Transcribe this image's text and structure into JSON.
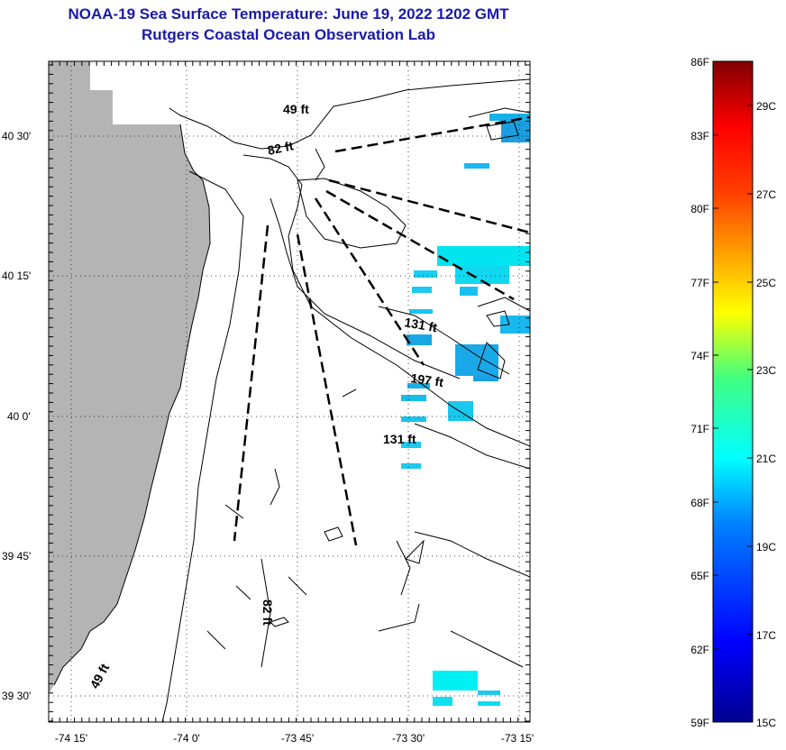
{
  "header": {
    "title_line1": "NOAA-19 Sea Surface Temperature:  June 19, 2022 1202 GMT",
    "title_line2": "Rutgers Coastal Ocean Observation Lab"
  },
  "map": {
    "lon_ticks": [
      "-74 15'",
      "-74 0'",
      "-73 45'",
      "-73 30'",
      "-73 15'"
    ],
    "lat_ticks": [
      "40 30'",
      "40 15'",
      "40 0'",
      "39 45'",
      "39 30'"
    ],
    "contour_labels": [
      "49 ft",
      "82 ft",
      "131 ft",
      "197 ft",
      "131 ft",
      "82 ft",
      "49 ft"
    ],
    "land_color": "#b4b4b4",
    "water_color": "#ffffff"
  },
  "colorbar": {
    "fahrenheit_labels": [
      "86F",
      "83F",
      "80F",
      "77F",
      "74F",
      "71F",
      "68F",
      "65F",
      "62F",
      "59F"
    ],
    "celsius_labels": [
      "29C",
      "27C",
      "25C",
      "23C",
      "21C",
      "19C",
      "17C",
      "15C"
    ]
  }
}
